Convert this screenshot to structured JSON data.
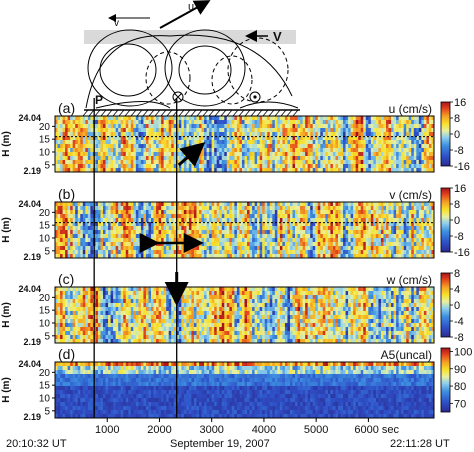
{
  "schematic": {
    "labels": {
      "u": "u",
      "v": "v",
      "V": "V",
      "P": "P"
    }
  },
  "chart_data": [
    {
      "type": "heatmap",
      "panel": "(a)",
      "title": "u (cm/s)",
      "ylabel": "H (m)",
      "yticks": [
        5,
        10,
        15,
        20
      ],
      "ylim_labels": {
        "top": "24.04",
        "bottom": "2.19"
      },
      "colorbar_ticks": [
        16,
        8,
        0,
        -8,
        -16
      ],
      "clim": [
        -16,
        16
      ],
      "dotted_line_height_m": 16
    },
    {
      "type": "heatmap",
      "panel": "(b)",
      "title": "v (cm/s)",
      "ylabel": "H (m)",
      "yticks": [
        5,
        10,
        15,
        20
      ],
      "ylim_labels": {
        "top": "24.04",
        "bottom": "2.19"
      },
      "colorbar_ticks": [
        16,
        8,
        0,
        -8,
        -16
      ],
      "clim": [
        -16,
        16
      ],
      "dotted_line_height_m": 16
    },
    {
      "type": "heatmap",
      "panel": "(c)",
      "title": "w (cm/s)",
      "ylabel": "H (m)",
      "yticks": [
        5,
        10,
        15,
        20
      ],
      "ylim_labels": {
        "top": "24.04",
        "bottom": "2.19"
      },
      "colorbar_ticks": [
        8,
        4,
        0,
        -4,
        -8
      ],
      "clim": [
        -8,
        8
      ]
    },
    {
      "type": "heatmap",
      "panel": "(d)",
      "title": "A5(uncal)",
      "ylabel": "H (m)",
      "yticks": [
        5,
        10,
        15,
        20
      ],
      "ylim_labels": {
        "top": "24.04",
        "bottom": "2.19"
      },
      "colorbar_ticks": [
        100,
        90,
        80,
        70
      ],
      "clim": [
        65,
        102
      ]
    }
  ],
  "xaxis": {
    "ticks": [
      1000,
      2000,
      3000,
      4000,
      5000,
      6000
    ],
    "tick_labels": [
      "1000",
      "2000",
      "3000",
      "4000",
      "5000",
      "6000 sec"
    ],
    "xlim": [
      0,
      7256
    ],
    "start_label": "20:10:32 UT",
    "center_label": "September 19, 2007",
    "end_label": "22:11:28 UT"
  },
  "markers": {
    "vertical_lines_sec": [
      750,
      2330
    ]
  },
  "colors": {
    "seq": [
      "#2a2a8f",
      "#2f50c8",
      "#3d8fe0",
      "#8fd0ec",
      "#e8f0a0",
      "#f7e12a",
      "#f5a025",
      "#e2421d",
      "#a9141a"
    ]
  }
}
